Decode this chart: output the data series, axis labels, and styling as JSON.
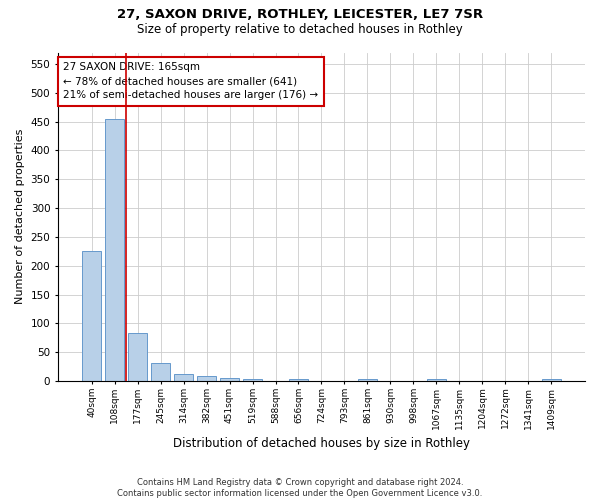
{
  "title_line1": "27, SAXON DRIVE, ROTHLEY, LEICESTER, LE7 7SR",
  "title_line2": "Size of property relative to detached houses in Rothley",
  "xlabel": "Distribution of detached houses by size in Rothley",
  "ylabel": "Number of detached properties",
  "categories": [
    "40sqm",
    "108sqm",
    "177sqm",
    "245sqm",
    "314sqm",
    "382sqm",
    "451sqm",
    "519sqm",
    "588sqm",
    "656sqm",
    "724sqm",
    "793sqm",
    "861sqm",
    "930sqm",
    "998sqm",
    "1067sqm",
    "1135sqm",
    "1204sqm",
    "1272sqm",
    "1341sqm",
    "1409sqm"
  ],
  "values": [
    225,
    455,
    83,
    32,
    12,
    9,
    6,
    3,
    0,
    3,
    0,
    0,
    3,
    0,
    0,
    3,
    0,
    0,
    0,
    0,
    3
  ],
  "bar_color": "#b8d0e8",
  "bar_edge_color": "#6699cc",
  "annotation_line1": "27 SAXON DRIVE: 165sqm",
  "annotation_line2": "← 78% of detached houses are smaller (641)",
  "annotation_line3": "21% of semi-detached houses are larger (176) →",
  "annotation_box_color": "#ffffff",
  "annotation_box_edge": "#cc0000",
  "marker_line_color": "#cc0000",
  "ylim": [
    0,
    570
  ],
  "yticks": [
    0,
    50,
    100,
    150,
    200,
    250,
    300,
    350,
    400,
    450,
    500,
    550
  ],
  "footer_line1": "Contains HM Land Registry data © Crown copyright and database right 2024.",
  "footer_line2": "Contains public sector information licensed under the Open Government Licence v3.0.",
  "background_color": "#ffffff",
  "grid_color": "#cccccc"
}
